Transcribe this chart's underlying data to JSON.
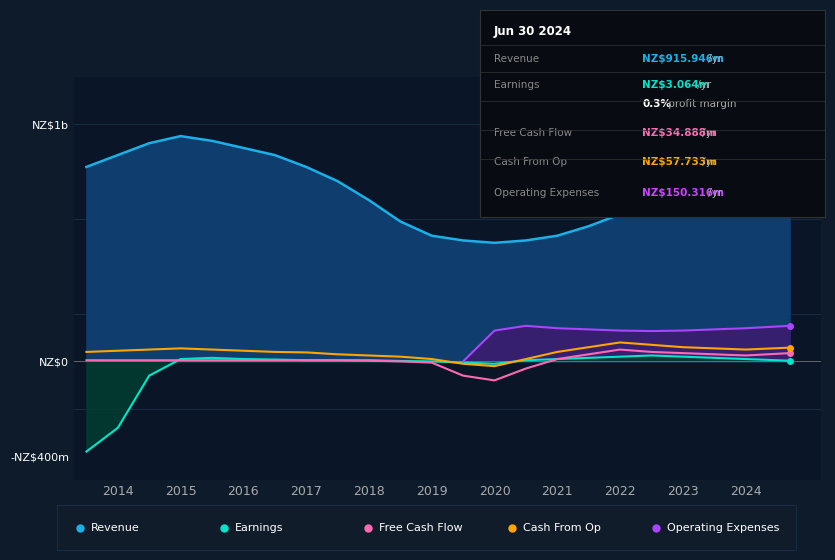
{
  "background_color": "#0d1b2a",
  "plot_bg_color": "#0a1628",
  "title_box": {
    "date": "Jun 30 2024",
    "rows": [
      {
        "label": "Revenue",
        "value": "NZ$915.946m",
        "value_color": "#1ab0e8",
        "suffix": " /yr"
      },
      {
        "label": "Earnings",
        "value": "NZ$3.064m",
        "value_color": "#00e5cc",
        "suffix": " /yr"
      },
      {
        "label": "",
        "value": "0.3%",
        "value_color": "#ffffff",
        "suffix": " profit margin"
      },
      {
        "label": "Free Cash Flow",
        "value": "NZ$34.888m",
        "value_color": "#ff69b4",
        "suffix": " /yr"
      },
      {
        "label": "Cash From Op",
        "value": "NZ$57.733m",
        "value_color": "#ffa500",
        "suffix": " /yr"
      },
      {
        "label": "Operating Expenses",
        "value": "NZ$150.316m",
        "value_color": "#cc44ff",
        "suffix": " /yr"
      }
    ]
  },
  "ylim": [
    -500,
    1200
  ],
  "xlim": [
    2013.3,
    2025.2
  ],
  "xticks": [
    2014,
    2015,
    2016,
    2017,
    2018,
    2019,
    2020,
    2021,
    2022,
    2023,
    2024
  ],
  "yticks_positions": [
    1000,
    0,
    -400
  ],
  "ytick_labels": [
    "NZ$1b",
    "NZ$0",
    "-NZ$400m"
  ],
  "series": {
    "revenue": {
      "x": [
        2013.5,
        2014.0,
        2014.5,
        2015.0,
        2015.5,
        2016.0,
        2016.5,
        2017.0,
        2017.5,
        2018.0,
        2018.5,
        2019.0,
        2019.5,
        2020.0,
        2020.5,
        2021.0,
        2021.5,
        2022.0,
        2022.5,
        2023.0,
        2023.5,
        2024.0,
        2024.7
      ],
      "y": [
        820,
        870,
        920,
        950,
        930,
        900,
        870,
        820,
        760,
        680,
        590,
        530,
        510,
        500,
        510,
        530,
        570,
        620,
        690,
        780,
        850,
        870,
        916
      ],
      "color": "#1ab0e8",
      "fill_color": "#0f3d6e",
      "label": "Revenue"
    },
    "earnings": {
      "x": [
        2013.5,
        2014.0,
        2014.5,
        2015.0,
        2015.5,
        2016.0,
        2016.5,
        2017.0,
        2017.5,
        2018.0,
        2018.5,
        2019.0,
        2019.5,
        2020.0,
        2020.5,
        2021.0,
        2021.5,
        2022.0,
        2022.5,
        2023.0,
        2023.5,
        2024.0,
        2024.7
      ],
      "y": [
        -380,
        -280,
        -60,
        10,
        15,
        10,
        8,
        5,
        5,
        5,
        2,
        0,
        -5,
        -10,
        5,
        10,
        15,
        20,
        25,
        20,
        15,
        10,
        3
      ],
      "color": "#00e5cc",
      "fill_color": "#003d30",
      "label": "Earnings"
    },
    "free_cash_flow": {
      "x": [
        2013.5,
        2014.0,
        2014.5,
        2015.0,
        2015.5,
        2016.0,
        2016.5,
        2017.0,
        2017.5,
        2018.0,
        2018.5,
        2019.0,
        2019.5,
        2020.0,
        2020.5,
        2021.0,
        2021.5,
        2022.0,
        2022.5,
        2023.0,
        2023.5,
        2024.0,
        2024.7
      ],
      "y": [
        5,
        5,
        5,
        5,
        5,
        5,
        5,
        5,
        5,
        3,
        0,
        -5,
        -60,
        -80,
        -30,
        10,
        30,
        50,
        40,
        35,
        30,
        25,
        35
      ],
      "color": "#ff69b4",
      "label": "Free Cash Flow"
    },
    "cash_from_op": {
      "x": [
        2013.5,
        2014.0,
        2014.5,
        2015.0,
        2015.5,
        2016.0,
        2016.5,
        2017.0,
        2017.5,
        2018.0,
        2018.5,
        2019.0,
        2019.5,
        2020.0,
        2020.5,
        2021.0,
        2021.5,
        2022.0,
        2022.5,
        2023.0,
        2023.5,
        2024.0,
        2024.7
      ],
      "y": [
        40,
        45,
        50,
        55,
        50,
        45,
        40,
        38,
        30,
        25,
        20,
        10,
        -10,
        -20,
        10,
        40,
        60,
        80,
        70,
        60,
        55,
        50,
        58
      ],
      "color": "#ffa500",
      "label": "Cash From Op"
    },
    "operating_expenses": {
      "x": [
        2019.5,
        2020.0,
        2020.5,
        2021.0,
        2021.5,
        2022.0,
        2022.5,
        2023.0,
        2023.5,
        2024.0,
        2024.7
      ],
      "y": [
        0,
        130,
        150,
        140,
        135,
        130,
        128,
        130,
        135,
        140,
        150
      ],
      "color": "#aa44ff",
      "fill_color": "#3d1a6e",
      "label": "Operating Expenses"
    }
  },
  "legend": [
    {
      "label": "Revenue",
      "color": "#1ab0e8"
    },
    {
      "label": "Earnings",
      "color": "#00e5cc"
    },
    {
      "label": "Free Cash Flow",
      "color": "#ff69b4"
    },
    {
      "label": "Cash From Op",
      "color": "#ffa500"
    },
    {
      "label": "Operating Expenses",
      "color": "#aa44ff"
    }
  ],
  "grid_color": "#1e3550",
  "text_color": "#aaaaaa",
  "zero_line_color": "#888888",
  "box_bg": "#080c12",
  "box_border": "#333333",
  "legend_bg": "#111c2a"
}
